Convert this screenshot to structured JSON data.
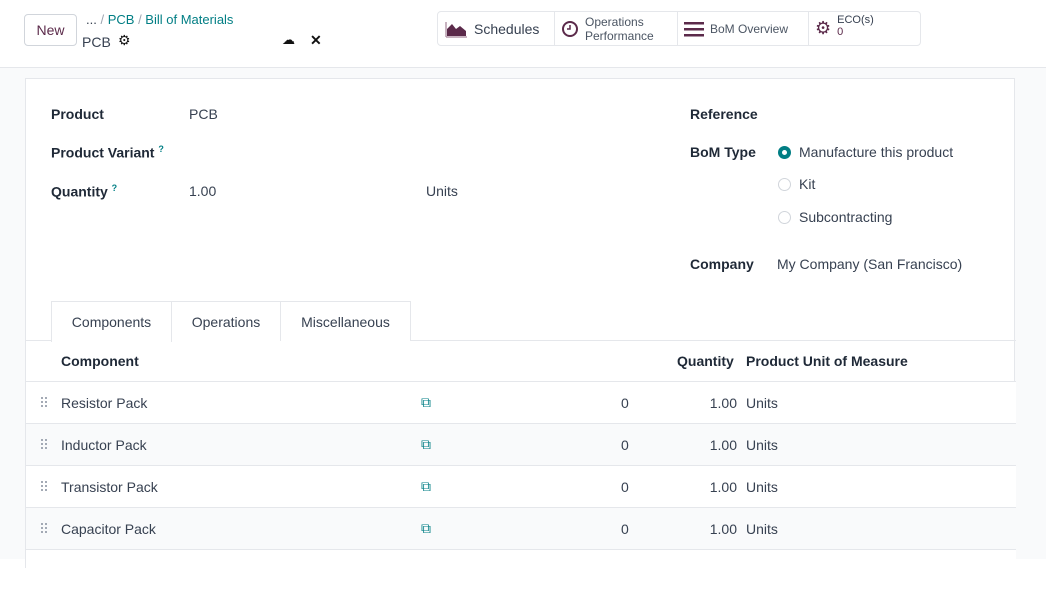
{
  "header": {
    "new_label": "New",
    "breadcrumb": [
      "...",
      "PCB",
      "Bill of Materials"
    ],
    "record_title": "PCB"
  },
  "smart_buttons": {
    "schedules": "Schedules",
    "ops_line1": "Operations",
    "ops_line2": "Performance",
    "bom_overview": "BoM Overview",
    "eco_label": "ECO(s)",
    "eco_count": "0"
  },
  "form": {
    "product_label": "Product",
    "product_value": "PCB",
    "variant_label": "Product Variant",
    "quantity_label": "Quantity",
    "quantity_value": "1.00",
    "quantity_uom": "Units",
    "help": "?",
    "reference_label": "Reference",
    "bom_type_label": "BoM Type",
    "bom_types": [
      "Manufacture this product",
      "Kit",
      "Subcontracting"
    ],
    "bom_type_selected": 0,
    "company_label": "Company",
    "company_value": "My Company (San Francisco)"
  },
  "tabs": [
    "Components",
    "Operations",
    "Miscellaneous"
  ],
  "table": {
    "headers": [
      "Component",
      "Quantity",
      "Product Unit of Measure"
    ],
    "rows": [
      {
        "component": "Resistor Pack",
        "count": "0",
        "quantity": "1.00",
        "uom": "Units"
      },
      {
        "component": "Inductor Pack",
        "count": "0",
        "quantity": "1.00",
        "uom": "Units"
      },
      {
        "component": "Transistor Pack",
        "count": "0",
        "quantity": "1.00",
        "uom": "Units"
      },
      {
        "component": "Capacitor Pack",
        "count": "0",
        "quantity": "1.00",
        "uom": "Units"
      }
    ]
  },
  "colors": {
    "accent": "#017e84",
    "brand": "#714b67"
  }
}
